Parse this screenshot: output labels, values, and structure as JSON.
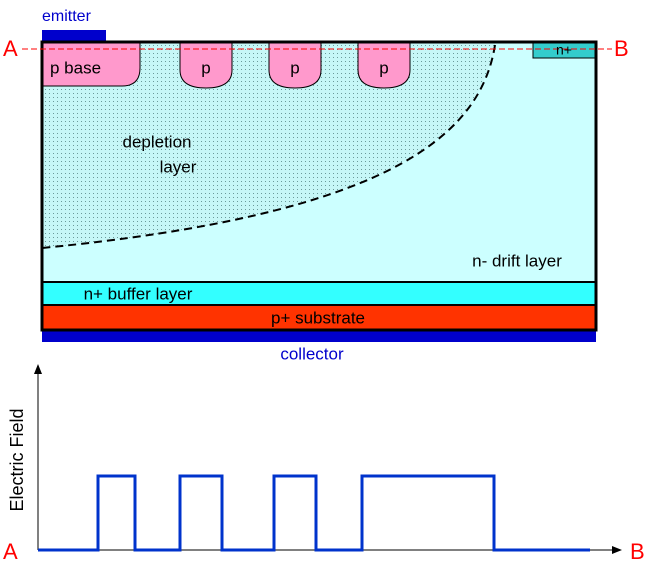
{
  "device": {
    "emitter": "emitter",
    "collector": "collector",
    "point_a": "A",
    "point_b": "B",
    "p_base": "p base",
    "p_wells": [
      "p",
      "p",
      "p"
    ],
    "n_plus": "n+",
    "depletion": [
      "depletion",
      "layer"
    ],
    "drift": "n- drift layer",
    "buffer": "n+ buffer layer",
    "substrate": "p+ substrate"
  },
  "graph": {
    "y_label": "Electric Field",
    "start": "A",
    "end": "B"
  }
}
